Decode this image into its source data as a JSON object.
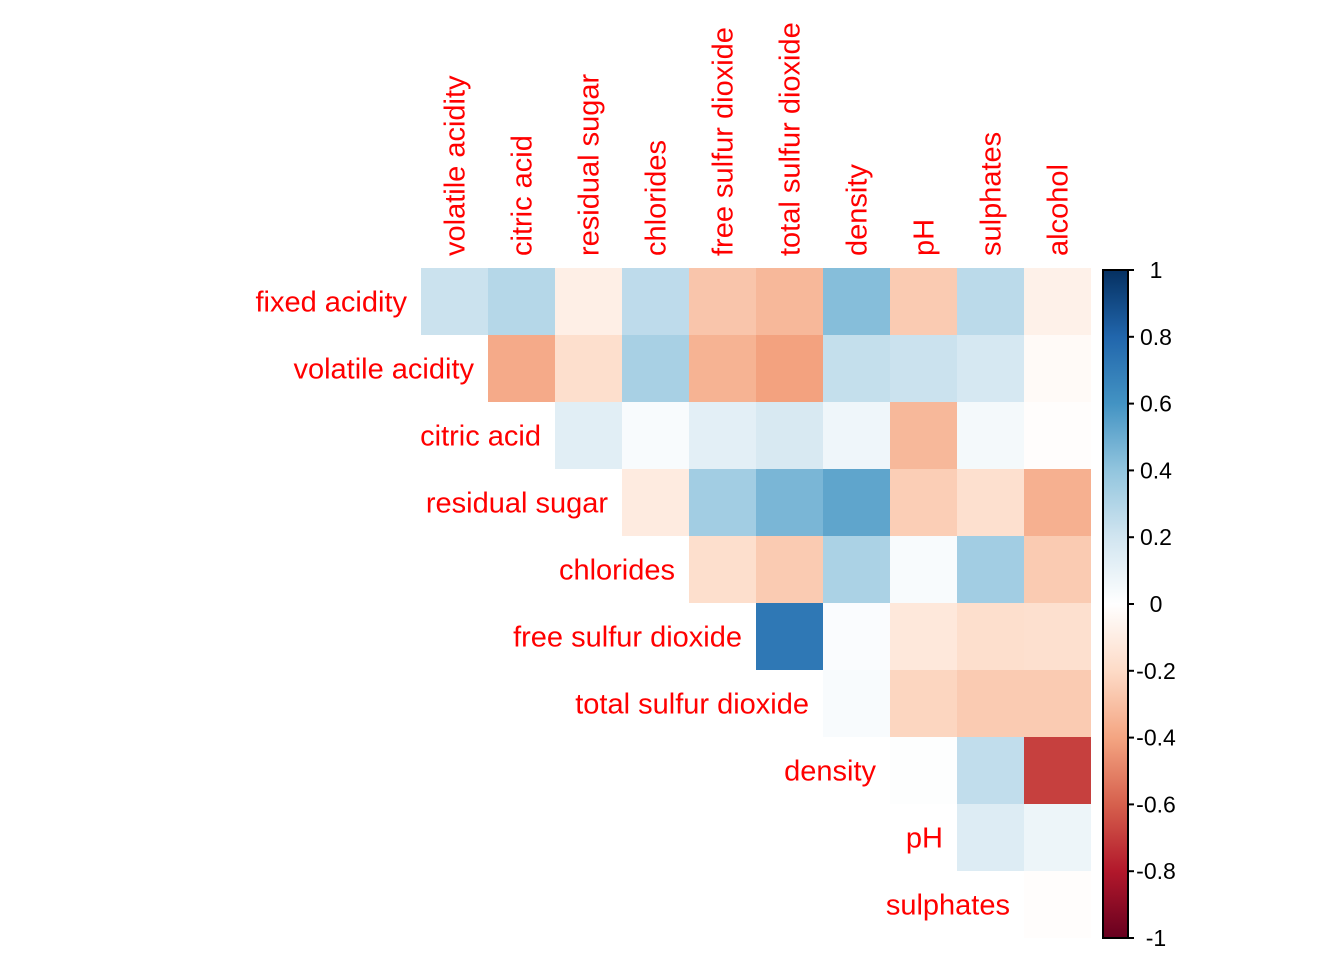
{
  "chart_data": {
    "type": "heatmap",
    "title": "",
    "layout": "upper-triangle-no-diagonal",
    "row_labels": [
      "fixed acidity",
      "volatile acidity",
      "citric acid",
      "residual sugar",
      "chlorides",
      "free sulfur dioxide",
      "total sulfur dioxide",
      "density",
      "pH",
      "sulphates"
    ],
    "col_labels": [
      "volatile acidity",
      "citric acid",
      "residual sugar",
      "chlorides",
      "free sulfur dioxide",
      "total sulfur dioxide",
      "density",
      "pH",
      "sulphates",
      "alcohol"
    ],
    "values": [
      [
        0.22,
        0.29,
        -0.09,
        0.26,
        -0.28,
        -0.33,
        0.43,
        -0.26,
        0.27,
        -0.08
      ],
      [
        null,
        -0.38,
        -0.18,
        0.33,
        -0.35,
        -0.41,
        0.24,
        0.22,
        0.18,
        -0.03
      ],
      [
        null,
        null,
        0.13,
        0.03,
        0.12,
        0.17,
        0.07,
        -0.33,
        0.05,
        -0.01
      ],
      [
        null,
        null,
        null,
        -0.11,
        0.35,
        0.46,
        0.53,
        -0.25,
        -0.17,
        -0.36
      ],
      [
        null,
        null,
        null,
        null,
        -0.18,
        -0.26,
        0.32,
        0.03,
        0.35,
        -0.26
      ],
      [
        null,
        null,
        null,
        null,
        null,
        0.72,
        0.02,
        -0.13,
        -0.18,
        -0.17
      ],
      [
        null,
        null,
        null,
        null,
        null,
        null,
        0.03,
        -0.22,
        -0.26,
        -0.26
      ],
      [
        null,
        null,
        null,
        null,
        null,
        null,
        null,
        0.01,
        0.25,
        -0.69
      ],
      [
        null,
        null,
        null,
        null,
        null,
        null,
        null,
        null,
        0.15,
        0.08
      ],
      [
        null,
        null,
        null,
        null,
        null,
        null,
        null,
        null,
        null,
        -0.01
      ]
    ],
    "colorbar": {
      "range": [
        -1,
        1
      ],
      "ticks": [
        "1",
        "0.8",
        "0.6",
        "0.4",
        "0.2",
        "0",
        "-0.2",
        "-0.4",
        "-0.6",
        "-0.8",
        "-1"
      ],
      "tick_values": [
        1,
        0.8,
        0.6,
        0.4,
        0.2,
        0,
        -0.2,
        -0.4,
        -0.6,
        -0.8,
        -1
      ],
      "palette": [
        "#67001F",
        "#B2182B",
        "#D6604D",
        "#F4A582",
        "#FDDBC7",
        "#FFFFFF",
        "#D1E5F0",
        "#92C5DE",
        "#4393C3",
        "#2166AC",
        "#053061"
      ]
    },
    "label_color": "#ff0000",
    "legend_placement": "right"
  }
}
